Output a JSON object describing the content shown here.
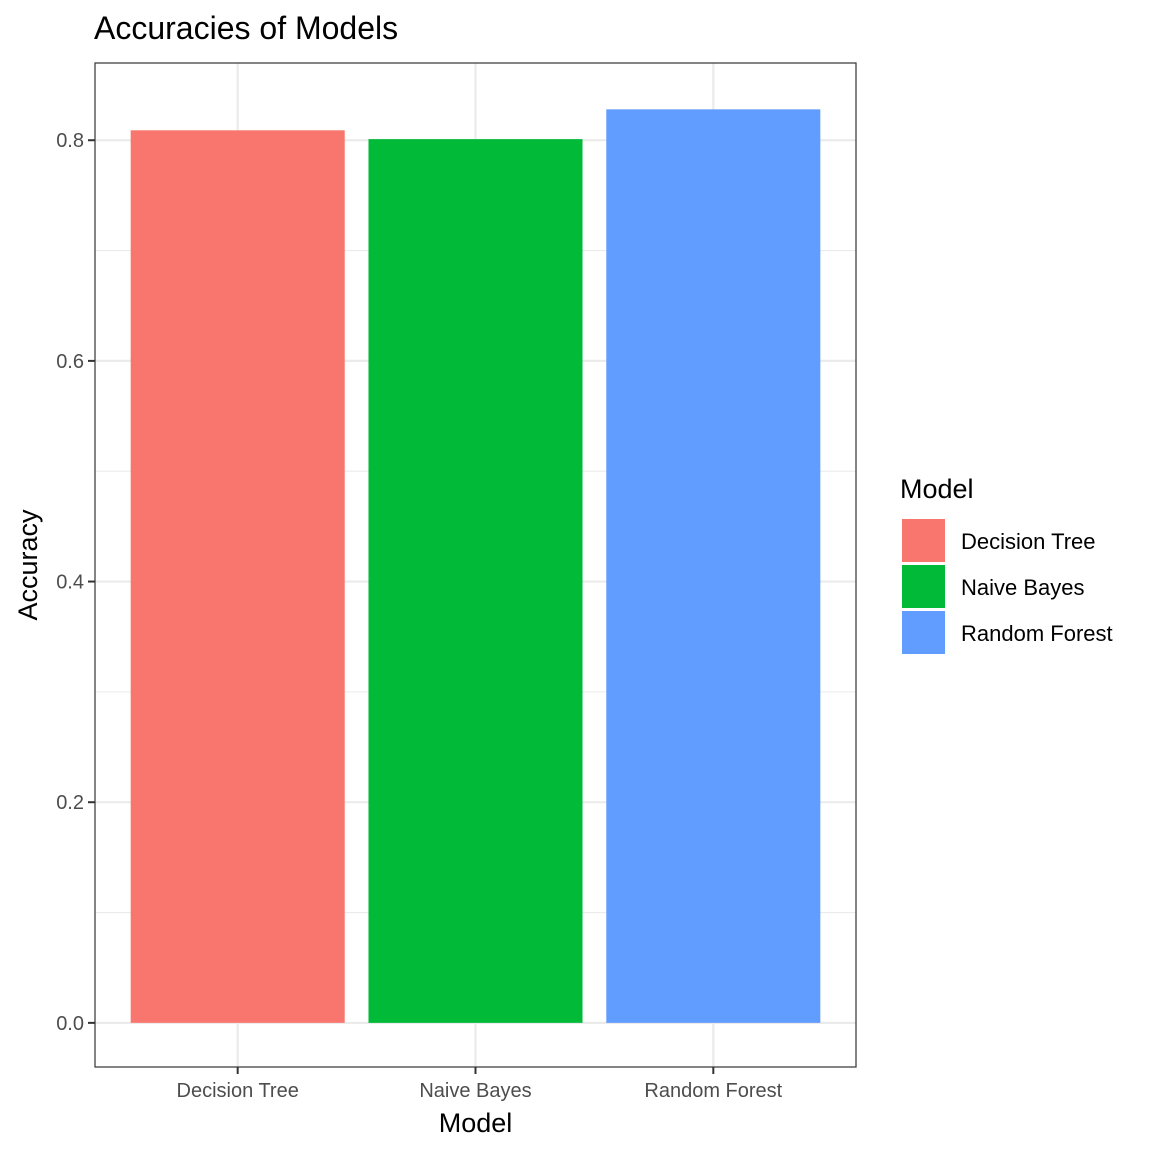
{
  "chart_data": {
    "type": "bar",
    "title": "Accuracies of Models",
    "xlabel": "Model",
    "ylabel": "Accuracy",
    "categories": [
      "Decision Tree",
      "Naive Bayes",
      "Random Forest"
    ],
    "values": [
      0.809,
      0.801,
      0.828
    ],
    "colors": [
      "#F8766D",
      "#00BA38",
      "#619CFF"
    ],
    "ylim": [
      -0.04,
      0.87
    ],
    "yticks": [
      0.0,
      0.2,
      0.4,
      0.6,
      0.8
    ],
    "ytick_labels": [
      "0.0",
      "0.2",
      "0.4",
      "0.6",
      "0.8"
    ],
    "grid": true,
    "legend": {
      "title": "Model",
      "placement": "right",
      "entries": [
        "Decision Tree",
        "Naive Bayes",
        "Random Forest"
      ]
    }
  }
}
